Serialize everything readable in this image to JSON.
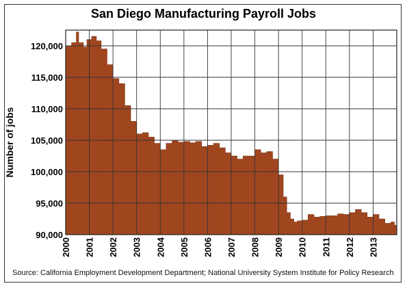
{
  "chart_data": {
    "type": "area",
    "title": "San Diego Manufacturing Payroll Jobs",
    "xlabel": "",
    "ylabel": "Number of jobs",
    "source": "Source: California Employment Development Department; National University System Institute for Policy Research",
    "ylim": [
      90000,
      122500
    ],
    "xlim": [
      2000,
      2014
    ],
    "grid": true,
    "fill_color": "#A0461F",
    "x_ticks": [
      "2000",
      "2001",
      "2002",
      "2003",
      "2004",
      "2005",
      "2006",
      "2007",
      "2008",
      "2009",
      "2010",
      "2011",
      "2012",
      "2013"
    ],
    "y_ticks": [
      "90,000",
      "95,000",
      "100,000",
      "105,000",
      "110,000",
      "115,000",
      "120,000"
    ],
    "series": [
      {
        "x": [
          2000.0,
          2000.25,
          2000.45,
          2000.55,
          2000.75,
          2000.9,
          2001.1,
          2001.3,
          2001.5,
          2001.75,
          2002.0,
          2002.25,
          2002.5,
          2002.75,
          2003.0,
          2003.25,
          2003.5,
          2003.75,
          2004.0,
          2004.25,
          2004.5,
          2004.75,
          2005.0,
          2005.25,
          2005.5,
          2005.75,
          2006.0,
          2006.25,
          2006.5,
          2006.75,
          2007.0,
          2007.25,
          2007.5,
          2007.75,
          2008.0,
          2008.25,
          2008.5,
          2008.75,
          2009.0,
          2009.2,
          2009.35,
          2009.5,
          2009.65,
          2009.8,
          2010.0,
          2010.25,
          2010.5,
          2010.75,
          2011.0,
          2011.25,
          2011.5,
          2011.75,
          2012.0,
          2012.25,
          2012.5,
          2012.75,
          2013.0,
          2013.25,
          2013.5,
          2013.75,
          2013.9
        ],
        "y": [
          120000,
          120500,
          122200,
          120500,
          119800,
          121000,
          121500,
          120800,
          119500,
          117000,
          114800,
          114000,
          110500,
          108000,
          106000,
          106200,
          105500,
          104500,
          103500,
          104500,
          105000,
          104700,
          104800,
          104600,
          104800,
          104000,
          104200,
          104500,
          103800,
          103000,
          102500,
          102000,
          102500,
          102500,
          103500,
          103000,
          103200,
          102000,
          99500,
          96000,
          93500,
          92500,
          92000,
          92200,
          92300,
          93200,
          92800,
          92900,
          93000,
          93000,
          93300,
          93200,
          93500,
          94000,
          93500,
          92800,
          93200,
          92500,
          91800,
          92000,
          91500
        ]
      }
    ]
  }
}
